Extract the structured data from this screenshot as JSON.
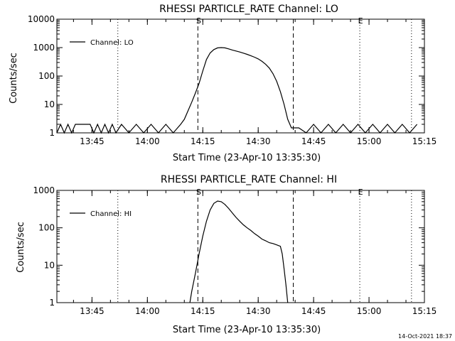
{
  "chart_data": [
    {
      "type": "line",
      "title": "RHESSI PARTICLE_RATE Channel: LO",
      "xlabel": "Start Time (23-Apr-10 13:35:30)",
      "ylabel": "Counts/sec",
      "y_scale": "log",
      "xlim": [
        "13:35:30",
        "15:15:00"
      ],
      "ylim": [
        1,
        10000
      ],
      "x_ticks": [
        "13:45",
        "14:00",
        "14:15",
        "14:30",
        "14:45",
        "15:00",
        "15:15"
      ],
      "y_ticks": [
        "1",
        "10",
        "100",
        "1000",
        "10000"
      ],
      "legend": "top-left",
      "legend_entries": [
        "Channel: LO"
      ],
      "grid": false,
      "event_markers": [
        {
          "label": "",
          "time": "13:35:30",
          "style": "dotted"
        },
        {
          "label": "S",
          "time": "14:13:40",
          "style": "dashed"
        },
        {
          "label": "",
          "time": "14:39:30",
          "style": "dashed"
        },
        {
          "label": "E",
          "time": "14:57:30",
          "style": "dotted"
        },
        {
          "label": "",
          "time": "13:52:00",
          "style": "dotted"
        },
        {
          "label": "",
          "time": "15:11:30",
          "style": "dotted"
        }
      ],
      "series": [
        {
          "name": "Channel: LO",
          "x": [
            "13:35:30",
            "13:36:30",
            "13:37:30",
            "13:38:30",
            "13:39:30",
            "13:40:30",
            "13:41:30",
            "13:42:30",
            "13:43:30",
            "13:44:30",
            "13:45:30",
            "13:46:30",
            "13:47:30",
            "13:48:30",
            "13:49:30",
            "13:50:30",
            "13:51:30",
            "13:53:00",
            "13:55:00",
            "13:57:00",
            "13:59:00",
            "14:01:00",
            "14:03:00",
            "14:05:00",
            "14:07:00",
            "14:09:00",
            "14:10:00",
            "14:11:00",
            "14:12:00",
            "14:13:00",
            "14:14:00",
            "14:15:00",
            "14:16:00",
            "14:17:00",
            "14:18:00",
            "14:19:00",
            "14:20:00",
            "14:21:00",
            "14:22:00",
            "14:23:00",
            "14:24:00",
            "14:25:00",
            "14:26:00",
            "14:27:00",
            "14:28:00",
            "14:29:00",
            "14:30:00",
            "14:31:00",
            "14:32:00",
            "14:33:00",
            "14:34:00",
            "14:35:00",
            "14:36:00",
            "14:37:00",
            "14:38:00",
            "14:39:00",
            "14:40:00",
            "14:41:00",
            "14:43:00",
            "14:45:00",
            "14:47:00",
            "14:49:00",
            "14:51:00",
            "14:53:00",
            "14:55:00",
            "14:57:00",
            "14:59:00",
            "15:01:00",
            "15:03:00",
            "15:05:00",
            "15:07:00",
            "15:09:00",
            "15:11:00",
            "15:13:00"
          ],
          "y": [
            1,
            2,
            1,
            2,
            1,
            2,
            2,
            2,
            2,
            2,
            1,
            2,
            1,
            2,
            1,
            2,
            1,
            2,
            1,
            2,
            1,
            2,
            1,
            2,
            1,
            2,
            3,
            6,
            12,
            25,
            55,
            150,
            380,
            650,
            850,
            980,
            1000,
            980,
            900,
            820,
            760,
            700,
            640,
            580,
            520,
            460,
            400,
            330,
            260,
            190,
            120,
            65,
            28,
            10,
            3,
            1.5,
            1.5,
            1.5,
            1,
            2,
            1,
            2,
            1,
            2,
            1,
            2,
            1,
            2,
            1,
            2,
            1,
            2,
            1,
            2
          ]
        }
      ]
    },
    {
      "type": "line",
      "title": "RHESSI PARTICLE_RATE Channel: HI",
      "xlabel": "Start Time (23-Apr-10 13:35:30)",
      "ylabel": "Counts/sec",
      "y_scale": "log",
      "xlim": [
        "13:35:30",
        "15:15:00"
      ],
      "ylim": [
        1,
        1000
      ],
      "x_ticks": [
        "13:45",
        "14:00",
        "14:15",
        "14:30",
        "14:45",
        "15:00",
        "15:15"
      ],
      "y_ticks": [
        "1",
        "10",
        "100",
        "1000"
      ],
      "legend": "top-left",
      "legend_entries": [
        "Channel: HI"
      ],
      "grid": false,
      "event_markers": [
        {
          "label": "",
          "time": "13:35:30",
          "style": "dotted"
        },
        {
          "label": "S",
          "time": "14:13:40",
          "style": "dashed"
        },
        {
          "label": "",
          "time": "14:39:30",
          "style": "dashed"
        },
        {
          "label": "E",
          "time": "14:57:30",
          "style": "dotted"
        },
        {
          "label": "",
          "time": "13:52:00",
          "style": "dotted"
        },
        {
          "label": "",
          "time": "15:11:30",
          "style": "dotted"
        }
      ],
      "series": [
        {
          "name": "Channel: HI",
          "x": [
            "14:11:30",
            "14:12:00",
            "14:13:00",
            "14:14:00",
            "14:15:00",
            "14:16:00",
            "14:17:00",
            "14:18:00",
            "14:19:00",
            "14:20:00",
            "14:21:00",
            "14:22:00",
            "14:23:00",
            "14:24:00",
            "14:25:00",
            "14:26:00",
            "14:27:00",
            "14:28:00",
            "14:29:00",
            "14:30:00",
            "14:31:00",
            "14:32:00",
            "14:33:00",
            "14:34:00",
            "14:35:00",
            "14:36:00",
            "14:36:30",
            "14:37:00",
            "14:37:30",
            "14:38:00"
          ],
          "y": [
            1,
            2,
            6,
            20,
            60,
            150,
            300,
            450,
            520,
            500,
            420,
            330,
            250,
            190,
            150,
            120,
            100,
            85,
            70,
            60,
            50,
            45,
            40,
            38,
            35,
            32,
            20,
            8,
            3,
            1
          ]
        }
      ]
    }
  ],
  "timestamp": "14-Oct-2021 18:37"
}
